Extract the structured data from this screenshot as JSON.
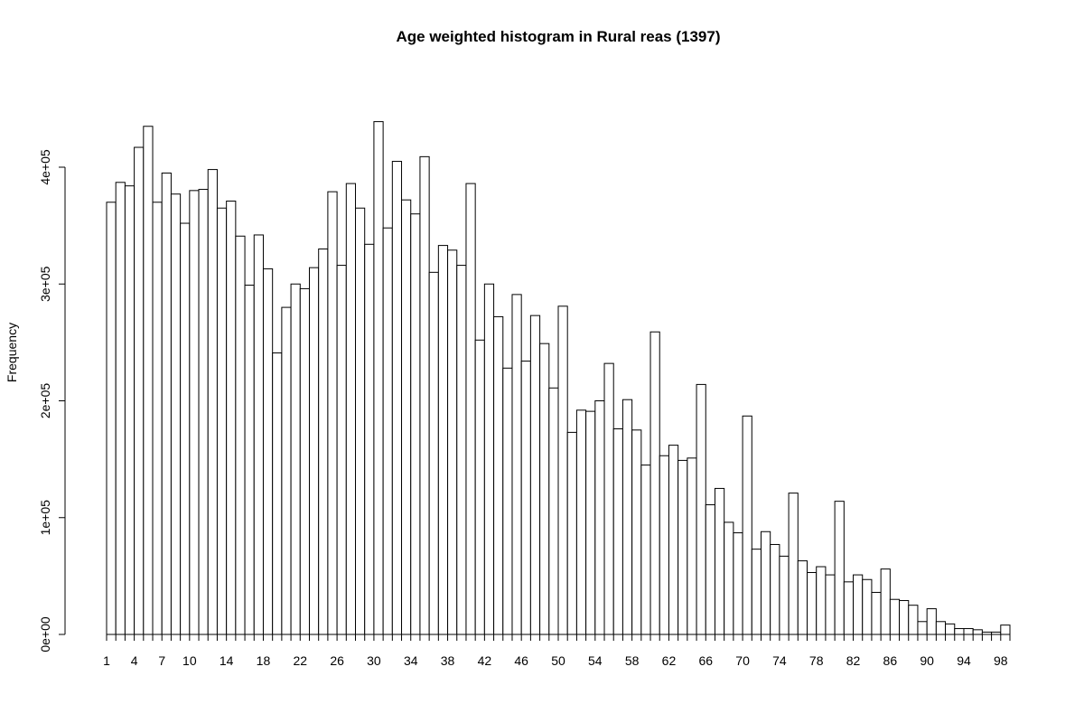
{
  "chart_data": {
    "type": "histogram",
    "title": "Age weighted histogram in Rural reas (1397)",
    "y_label": "Frequency",
    "bins": [
      1,
      2,
      3,
      4,
      5,
      6,
      7,
      8,
      9,
      10,
      11,
      12,
      13,
      14,
      15,
      16,
      17,
      18,
      19,
      20,
      21,
      22,
      23,
      24,
      25,
      26,
      27,
      28,
      29,
      30,
      31,
      32,
      33,
      34,
      35,
      36,
      37,
      38,
      39,
      40,
      41,
      42,
      43,
      44,
      45,
      46,
      47,
      48,
      49,
      50,
      51,
      52,
      53,
      54,
      55,
      56,
      57,
      58,
      59,
      60,
      61,
      62,
      63,
      64,
      65,
      66,
      67,
      68,
      69,
      70,
      71,
      72,
      73,
      74,
      75,
      76,
      77,
      78,
      79,
      80,
      81,
      82,
      83,
      84,
      85,
      86,
      87,
      88,
      89,
      90,
      91,
      92,
      93,
      94,
      95,
      96,
      97,
      98,
      99
    ],
    "values": [
      370000,
      387000,
      384000,
      417000,
      435000,
      370000,
      395000,
      377000,
      352000,
      380000,
      381000,
      398000,
      365000,
      371000,
      341000,
      299000,
      342000,
      313000,
      241000,
      280000,
      300000,
      296000,
      314000,
      330000,
      379000,
      316000,
      386000,
      365000,
      334000,
      439000,
      348000,
      405000,
      372000,
      360000,
      409000,
      310000,
      333000,
      329000,
      316000,
      386000,
      252000,
      300000,
      272000,
      228000,
      291000,
      234000,
      273000,
      249000,
      211000,
      281000,
      173000,
      192000,
      191000,
      200000,
      232000,
      176000,
      201000,
      175000,
      145000,
      259000,
      153000,
      162000,
      149000,
      151000,
      214000,
      111000,
      125000,
      96000,
      87000,
      187000,
      73000,
      88000,
      77000,
      67000,
      121000,
      63000,
      53000,
      58000,
      51000,
      114000,
      45000,
      51000,
      47000,
      36000,
      56000,
      30000,
      29000,
      25000,
      11000,
      22000,
      11000,
      9000,
      5000,
      5000,
      4000,
      2000,
      2000,
      8000
    ],
    "color": "#ffffff",
    "edge_color": "#000000",
    "xlim": [
      1,
      99
    ],
    "xticks": [
      1,
      4,
      7,
      10,
      14,
      18,
      22,
      26,
      30,
      34,
      38,
      42,
      46,
      50,
      54,
      58,
      62,
      66,
      70,
      74,
      78,
      82,
      86,
      90,
      94,
      98
    ],
    "ylim": [
      0,
      440000
    ],
    "yticks": [
      {
        "value": 0,
        "label": "0e+00"
      },
      {
        "value": 100000,
        "label": "1e+05"
      },
      {
        "value": 200000,
        "label": "2e+05"
      },
      {
        "value": 300000,
        "label": "3e+05"
      },
      {
        "value": 400000,
        "label": "4e+05"
      }
    ],
    "grid": false
  }
}
